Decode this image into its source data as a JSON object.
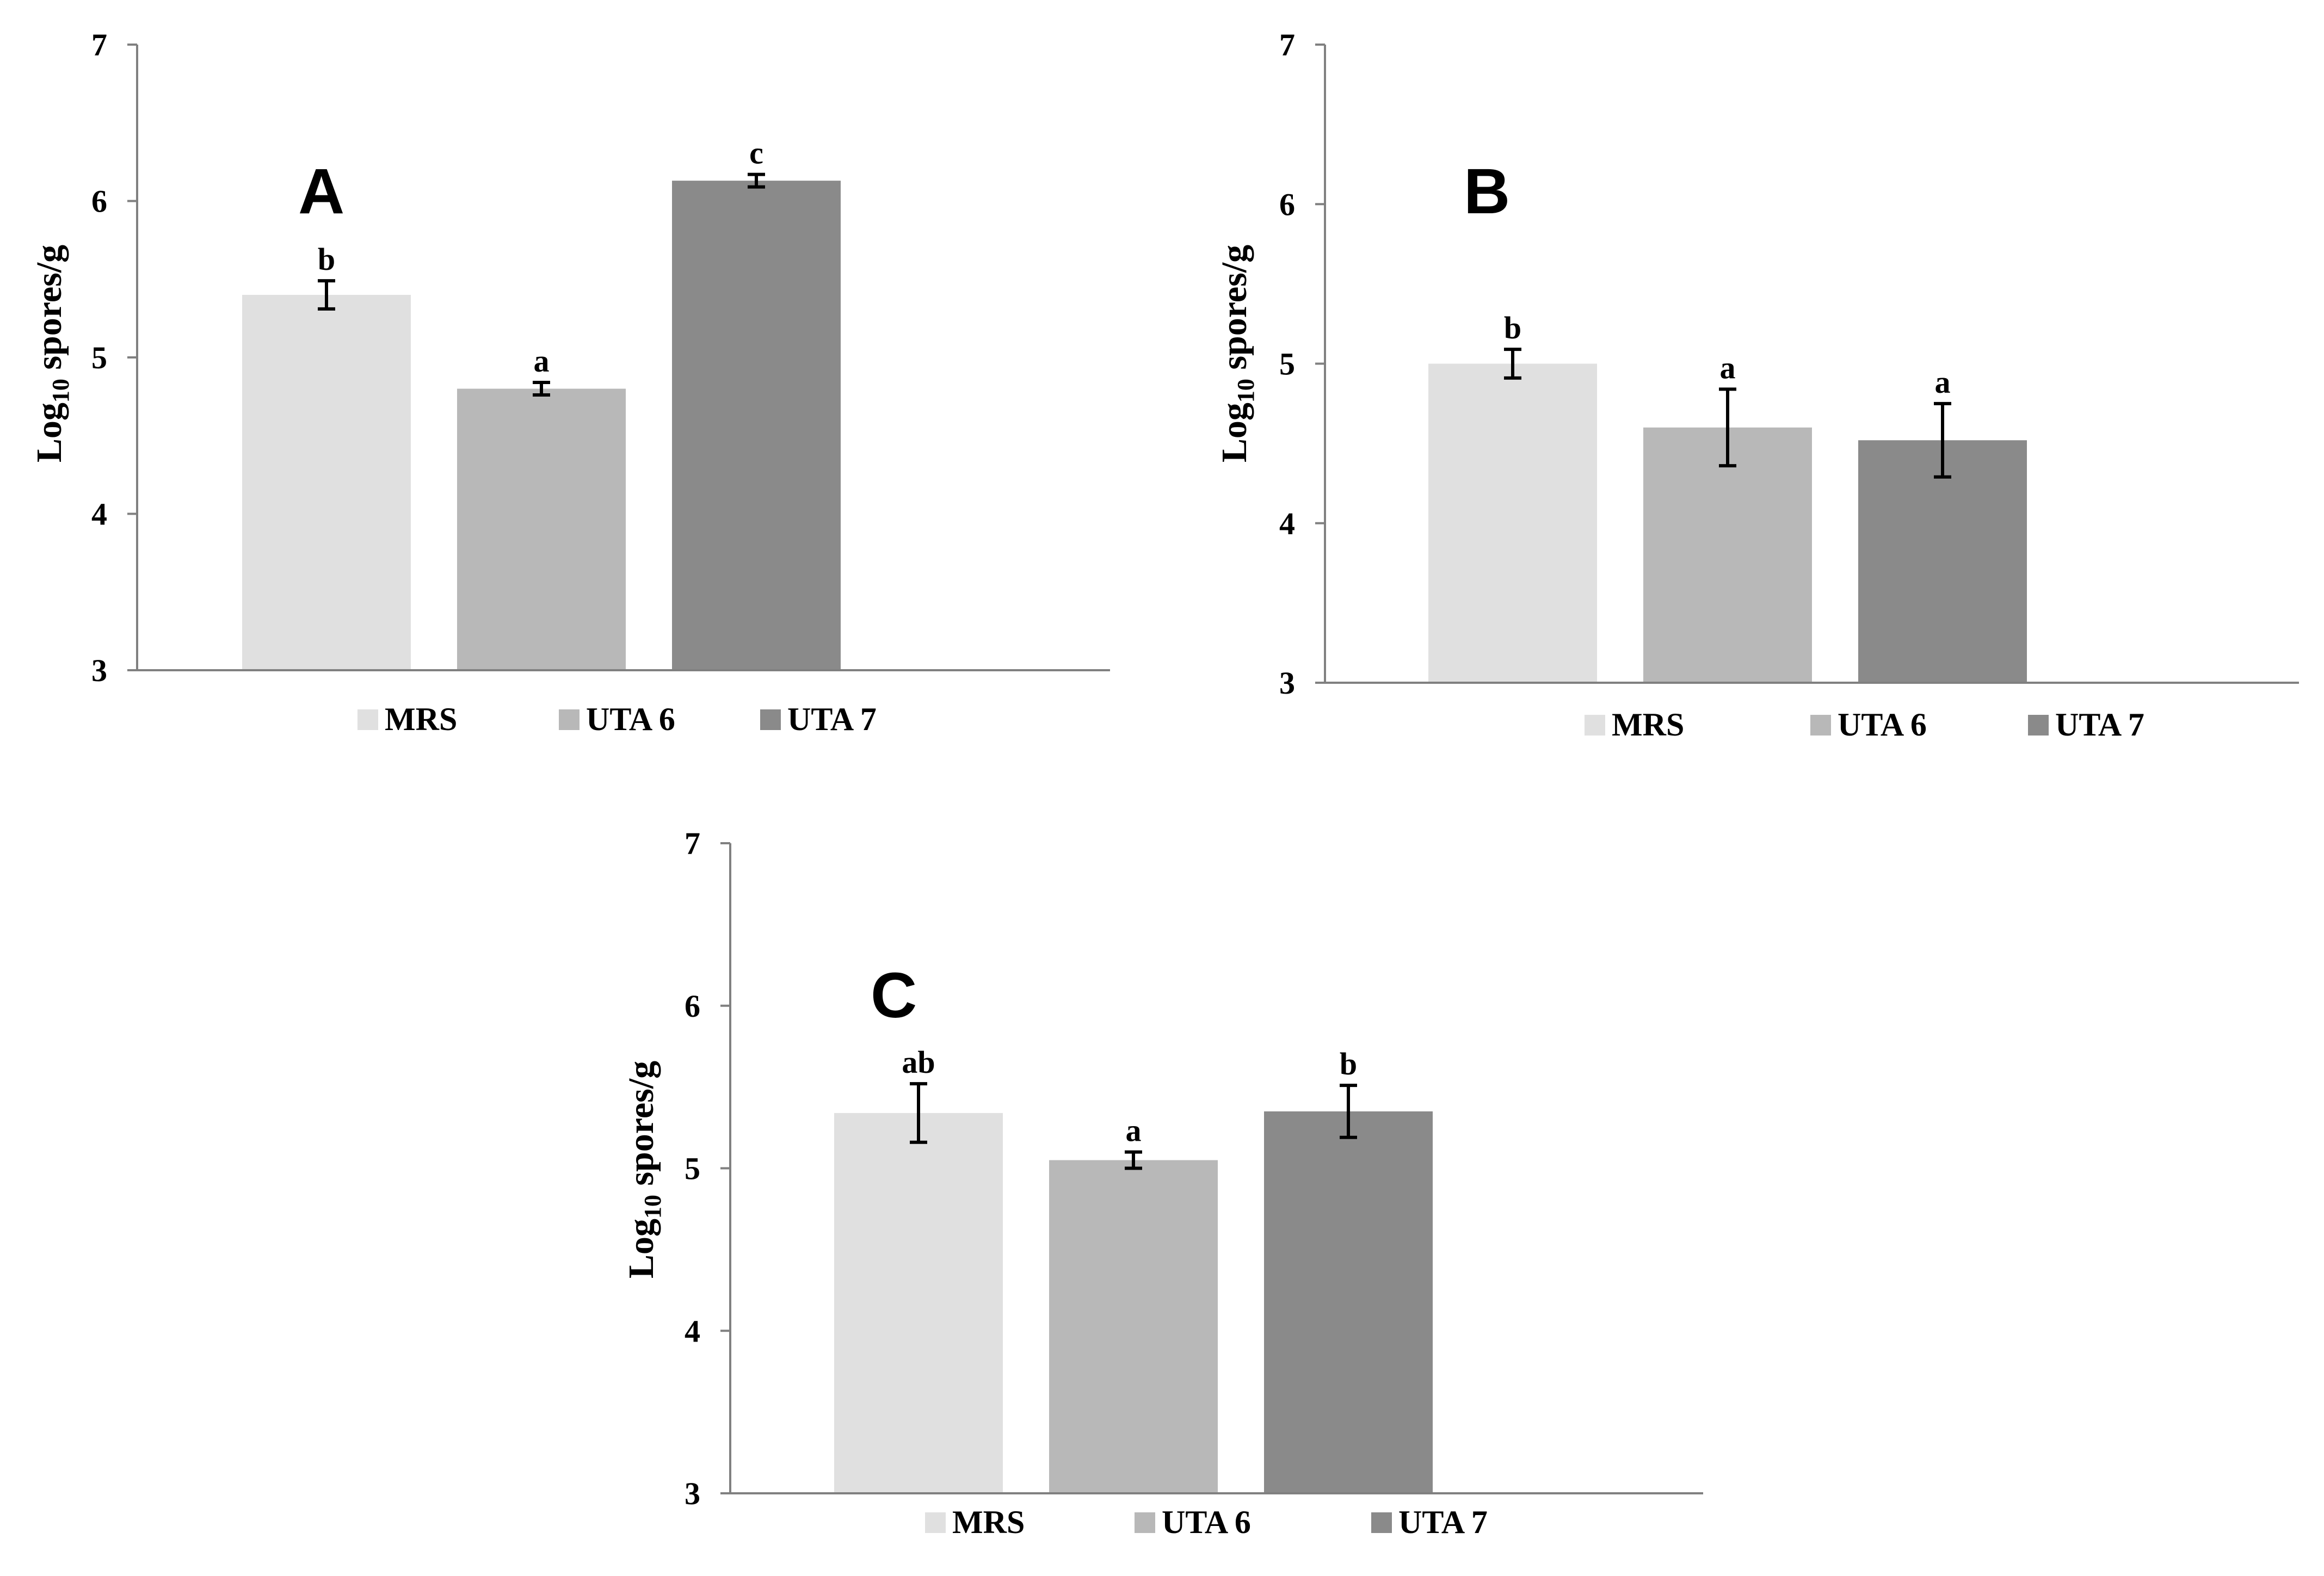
{
  "chart_data": [
    {
      "type": "bar",
      "panel": "A",
      "categories": [
        "MRS",
        "UTA 6",
        "UTA 7"
      ],
      "values": [
        5.4,
        4.8,
        6.13
      ],
      "errors": [
        0.09,
        0.04,
        0.04
      ],
      "significance": [
        "b",
        "a",
        "c"
      ],
      "colors": [
        "#e0e0e0",
        "#b8b8b8",
        "#8a8a8a"
      ],
      "ylabel_main": "Log",
      "ylabel_sub": "10",
      "ylabel_rest": " spores/g",
      "yticks": [
        "3",
        "4",
        "5",
        "6",
        "7"
      ],
      "ylim": [
        3,
        7
      ],
      "legend": [
        "MRS",
        "UTA 6",
        "UTA 7"
      ]
    },
    {
      "type": "bar",
      "panel": "B",
      "categories": [
        "MRS",
        "UTA 6",
        "UTA 7"
      ],
      "values": [
        5.0,
        4.6,
        4.52
      ],
      "errors": [
        0.09,
        0.24,
        0.23
      ],
      "significance": [
        "b",
        "a",
        "a"
      ],
      "colors": [
        "#e0e0e0",
        "#b8b8b8",
        "#8a8a8a"
      ],
      "ylabel_main": "Log",
      "ylabel_sub": "10",
      "ylabel_rest": " spores/g",
      "yticks": [
        "3",
        "4",
        "5",
        "6",
        "7"
      ],
      "ylim": [
        3,
        7
      ],
      "legend": [
        "MRS",
        "UTA 6",
        "UTA 7"
      ]
    },
    {
      "type": "bar",
      "panel": "C",
      "categories": [
        "MRS",
        "UTA 6",
        "UTA 7"
      ],
      "values": [
        5.34,
        5.05,
        5.35
      ],
      "errors": [
        0.18,
        0.05,
        0.16
      ],
      "significance": [
        "ab",
        "a",
        "b"
      ],
      "colors": [
        "#e0e0e0",
        "#b8b8b8",
        "#8a8a8a"
      ],
      "ylabel_main": "Log",
      "ylabel_sub": "10",
      "ylabel_rest": " spores/g",
      "yticks": [
        "3",
        "4",
        "5",
        "6",
        "7"
      ],
      "ylim": [
        3,
        7
      ],
      "legend": [
        "MRS",
        "UTA 6",
        "UTA 7"
      ]
    }
  ]
}
